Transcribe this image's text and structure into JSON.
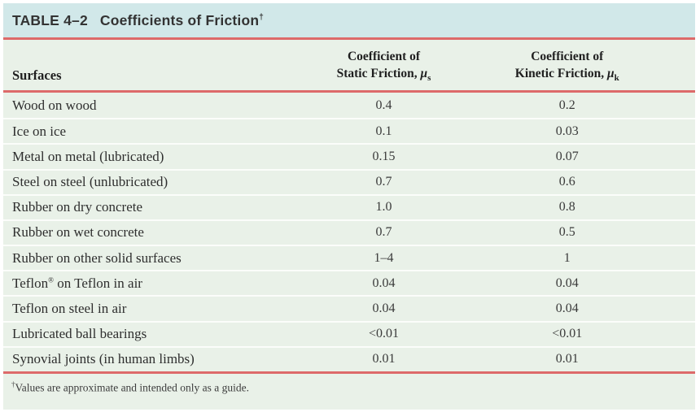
{
  "colors": {
    "title_bar_bg": "#d1e8e9",
    "table_bg": "#e9f1e8",
    "rule_red": "#dd6a6a",
    "row_separator": "#fbfdfa",
    "text_dark": "#333333"
  },
  "title": {
    "table_label": "TABLE 4–2",
    "table_title": "Coefficients of Friction",
    "dagger": "†"
  },
  "columns": {
    "surfaces": "Surfaces",
    "static": {
      "line1": "Coefficient of",
      "line2_prefix": "Static Friction, ",
      "symbol": "μ",
      "subscript": "s"
    },
    "kinetic": {
      "line1": "Coefficient of",
      "line2_prefix": "Kinetic Friction, ",
      "symbol": "μ",
      "subscript": "k"
    }
  },
  "table": {
    "rows": [
      {
        "surface": "Wood on wood",
        "static": "0.4",
        "kinetic": "0.2"
      },
      {
        "surface": "Ice on ice",
        "static": "0.1",
        "kinetic": "0.03"
      },
      {
        "surface": "Metal on metal (lubricated)",
        "static": "0.15",
        "kinetic": "0.07"
      },
      {
        "surface": "Steel on steel (unlubricated)",
        "static": "0.7",
        "kinetic": "0.6"
      },
      {
        "surface": "Rubber on dry concrete",
        "static": "1.0",
        "kinetic": "0.8"
      },
      {
        "surface": "Rubber on wet concrete",
        "static": "0.7",
        "kinetic": "0.5"
      },
      {
        "surface": "Rubber on other solid surfaces",
        "static": "1–4",
        "kinetic": "1"
      },
      {
        "surface": "Teflon® on Teflon in air",
        "static": "0.04",
        "kinetic": "0.04"
      },
      {
        "surface": "Teflon on steel in air",
        "static": "0.04",
        "kinetic": "0.04"
      },
      {
        "surface": "Lubricated ball bearings",
        "static": "<0.01",
        "kinetic": "<0.01"
      },
      {
        "surface": "Synovial joints (in human limbs)",
        "static": "0.01",
        "kinetic": "0.01"
      }
    ]
  },
  "footnote": {
    "dagger": "†",
    "text": "Values are approximate and intended only as a guide."
  }
}
